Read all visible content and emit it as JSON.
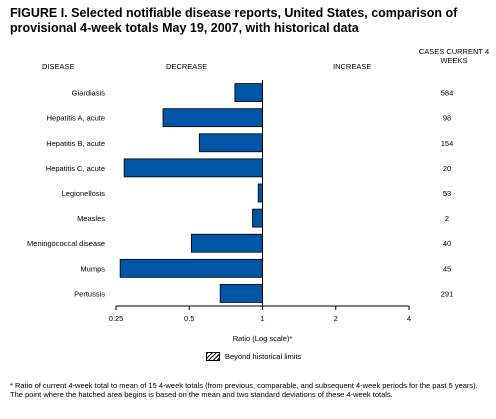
{
  "title": "FIGURE I. Selected notifiable disease reports, United States, comparison of provisional 4-week totals May 19, 2007, with historical data",
  "headers": {
    "disease": "DISEASE",
    "decrease": "DECREASE",
    "increase": "INCREASE",
    "cases": "CASES CURRENT 4 WEEKS"
  },
  "legend": {
    "label": "Beyond historical limits"
  },
  "footnote": "* Ratio of current 4-week total to mean of 15 4-week totals (from previous, comparable, and subsequent 4-week periods for the past 5 years). The point where the hatched area begins is based on the mean and two standard deviations of these 4-week totals.",
  "colors": {
    "bar": "#0055a5",
    "bar_outline": "#000000"
  },
  "chart_data": {
    "type": "bar",
    "orientation": "horizontal",
    "xscale": "log2",
    "xlim": [
      0.25,
      4
    ],
    "reference_line": 1,
    "xlabel": "Ratio (Log scale)*",
    "xticks": [
      "0.25",
      "0.5",
      "1",
      "2",
      "4"
    ],
    "categories": [
      "Giardiasis",
      "Hepatitis A, acute",
      "Hepatitis B, acute",
      "Hepatitis C, acute",
      "Legionellosis",
      "Measles",
      "Meningococcal disease",
      "Mumps",
      "Pertussis"
    ],
    "values": [
      0.77,
      0.39,
      0.55,
      0.27,
      0.96,
      0.91,
      0.51,
      0.26,
      0.67
    ],
    "cases": [
      "584",
      "98",
      "154",
      "20",
      "53",
      "2",
      "40",
      "45",
      "291"
    ]
  }
}
